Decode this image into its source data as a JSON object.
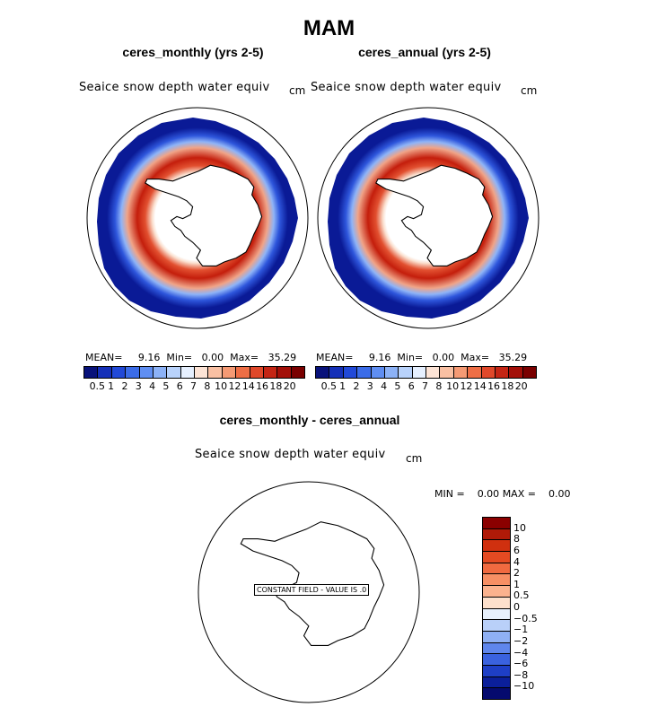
{
  "title": "MAM",
  "panels": [
    {
      "subtitle": "ceres_monthly (yrs 2-5)",
      "variable": "Seaice snow depth water equiv",
      "units": "cm",
      "mean_label": "MEAN=",
      "mean": "9.16",
      "min_label": "Min=",
      "min": "0.00",
      "max_label": "Max=",
      "max": "35.29"
    },
    {
      "subtitle": "ceres_annual (yrs 2-5)",
      "variable": "Seaice snow depth water equiv",
      "units": "cm",
      "mean_label": "MEAN=",
      "mean": "9.16",
      "min_label": "Min=",
      "min": "0.00",
      "max_label": "Max=",
      "max": "35.29"
    }
  ],
  "colorbar": {
    "labels": [
      "0.5",
      "1",
      "2",
      "3",
      "4",
      "5",
      "6",
      "7",
      "8",
      "10",
      "12",
      "14",
      "16",
      "18",
      "20"
    ],
    "colors": [
      "#08127a",
      "#1530b8",
      "#2149d8",
      "#3b6ce8",
      "#5f8ef2",
      "#8cb2f7",
      "#b8d2fb",
      "#e6f0ff",
      "#fde4d6",
      "#f9c0a3",
      "#f59a74",
      "#ee6e45",
      "#e0482a",
      "#c42514",
      "#a30f08",
      "#7a0000"
    ]
  },
  "diff": {
    "subtitle": "ceres_monthly - ceres_annual",
    "variable": "Seaice snow depth water equiv",
    "units": "cm",
    "min_label": "MIN =",
    "min": "0.00",
    "max_label": "MAX =",
    "max": "0.00",
    "constant_label": "CONSTANT FIELD - VALUE IS .0",
    "colorbar_labels": [
      "10",
      "8",
      "6",
      "4",
      "2",
      "1",
      "0.5",
      "0",
      "−0.5",
      "−1",
      "−2",
      "−4",
      "−6",
      "−8",
      "−10"
    ],
    "colorbar_colors": [
      "#8b0000",
      "#b01a08",
      "#d0300f",
      "#e44a22",
      "#f06a40",
      "#f78f64",
      "#fbb28e",
      "#fde0cc",
      "#e8f1fd",
      "#b9d0f9",
      "#8fb0f4",
      "#5f86ec",
      "#3a62df",
      "#1e3fc6",
      "#0b1f9a",
      "#050a6e"
    ]
  },
  "chart_data": [
    {
      "type": "heatmap",
      "title": "ceres_monthly (yrs 2-5)",
      "variable": "Seaice snow depth water equiv",
      "units": "cm",
      "projection": "south polar stereographic",
      "mean": 9.16,
      "min": 0.0,
      "max": 35.29,
      "levels": [
        0.5,
        1,
        2,
        3,
        4,
        5,
        6,
        7,
        8,
        10,
        12,
        14,
        16,
        18,
        20
      ]
    },
    {
      "type": "heatmap",
      "title": "ceres_annual (yrs 2-5)",
      "variable": "Seaice snow depth water equiv",
      "units": "cm",
      "projection": "south polar stereographic",
      "mean": 9.16,
      "min": 0.0,
      "max": 35.29,
      "levels": [
        0.5,
        1,
        2,
        3,
        4,
        5,
        6,
        7,
        8,
        10,
        12,
        14,
        16,
        18,
        20
      ]
    },
    {
      "type": "heatmap",
      "title": "ceres_monthly - ceres_annual",
      "variable": "Seaice snow depth water equiv",
      "units": "cm",
      "min": 0.0,
      "max": 0.0,
      "constant_value": 0,
      "levels": [
        -10,
        -8,
        -6,
        -4,
        -2,
        -1,
        -0.5,
        0,
        0.5,
        1,
        2,
        4,
        6,
        8,
        10
      ]
    }
  ]
}
